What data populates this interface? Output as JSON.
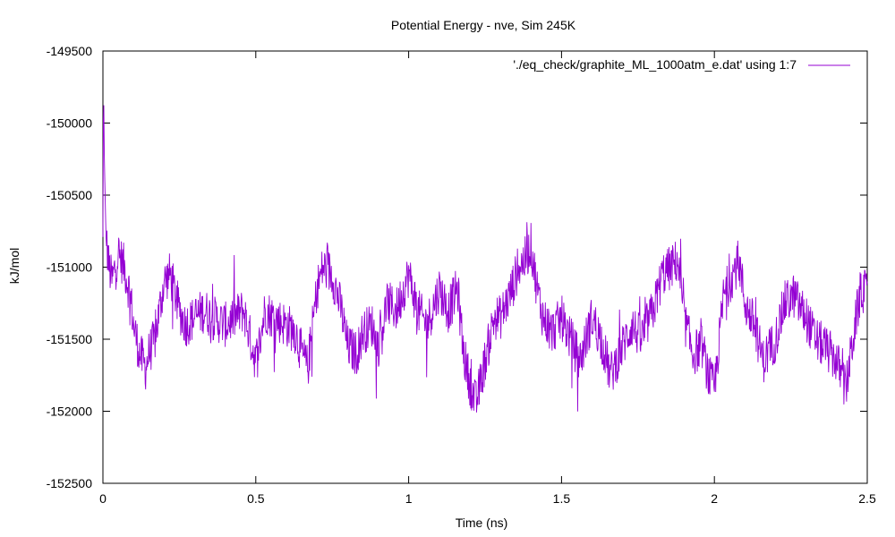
{
  "chart_data": {
    "type": "line",
    "title": "Potential Energy - nve, Sim 245K",
    "xlabel": "Time (ns)",
    "ylabel": "kJ/mol",
    "xlim": [
      0,
      2.5
    ],
    "ylim": [
      -152500,
      -149500
    ],
    "x_ticks": [
      0,
      0.5,
      1,
      1.5,
      2,
      2.5
    ],
    "x_tick_labels": [
      "0",
      "0.5",
      "1",
      "1.5",
      "2",
      "2.5"
    ],
    "y_ticks": [
      -149500,
      -150000,
      -150500,
      -151000,
      -151500,
      -152000,
      -152500
    ],
    "y_tick_labels": [
      "-149500",
      "-150000",
      "-150500",
      "-151000",
      "-151500",
      "-152000",
      "-152500"
    ],
    "grid": false,
    "legend_position": "top-right",
    "series": [
      {
        "name": "'./eq_check/graphite_ML_1000atm_e.dat' using 1:7",
        "color": "#9400d3",
        "x": [
          0,
          0.002,
          0.005,
          0.01,
          0.02,
          0.03,
          0.05,
          0.07,
          0.09,
          0.1,
          0.12,
          0.14,
          0.15,
          0.17,
          0.2,
          0.22,
          0.25,
          0.27,
          0.3,
          0.33,
          0.36,
          0.4,
          0.43,
          0.46,
          0.5,
          0.51,
          0.53,
          0.56,
          0.6,
          0.63,
          0.65,
          0.67,
          0.7,
          0.72,
          0.75,
          0.78,
          0.8,
          0.83,
          0.85,
          0.88,
          0.9,
          0.93,
          0.96,
          1.0,
          1.03,
          1.06,
          1.1,
          1.13,
          1.16,
          1.18,
          1.2,
          1.22,
          1.25,
          1.28,
          1.3,
          1.33,
          1.36,
          1.38,
          1.4,
          1.42,
          1.44,
          1.47,
          1.5,
          1.53,
          1.56,
          1.6,
          1.63,
          1.66,
          1.7,
          1.73,
          1.76,
          1.8,
          1.83,
          1.86,
          1.88,
          1.9,
          1.93,
          1.96,
          1.98,
          2.0,
          2.03,
          2.06,
          2.08,
          2.1,
          2.13,
          2.16,
          2.2,
          2.23,
          2.26,
          2.3,
          2.33,
          2.36,
          2.4,
          2.43,
          2.46,
          2.48,
          2.5
        ],
        "y": [
          -150800,
          -149700,
          -150300,
          -150800,
          -151000,
          -151100,
          -150900,
          -151000,
          -151200,
          -151400,
          -151600,
          -151700,
          -151600,
          -151500,
          -151100,
          -151050,
          -151300,
          -151400,
          -151350,
          -151300,
          -151350,
          -151400,
          -151350,
          -151300,
          -151650,
          -151550,
          -151300,
          -151350,
          -151400,
          -151450,
          -151600,
          -151700,
          -151150,
          -151000,
          -151050,
          -151300,
          -151550,
          -151600,
          -151450,
          -151400,
          -151550,
          -151250,
          -151300,
          -151050,
          -151300,
          -151400,
          -151150,
          -151300,
          -151150,
          -151600,
          -151800,
          -151950,
          -151650,
          -151350,
          -151350,
          -151200,
          -151000,
          -150950,
          -150850,
          -151150,
          -151350,
          -151450,
          -151350,
          -151500,
          -151650,
          -151350,
          -151500,
          -151750,
          -151550,
          -151400,
          -151500,
          -151300,
          -151050,
          -151000,
          -150950,
          -151350,
          -151600,
          -151550,
          -151750,
          -151850,
          -151200,
          -151050,
          -150950,
          -151250,
          -151400,
          -151650,
          -151500,
          -151250,
          -151200,
          -151350,
          -151500,
          -151550,
          -151650,
          -151850,
          -151400,
          -151150,
          -151200
        ]
      }
    ]
  }
}
